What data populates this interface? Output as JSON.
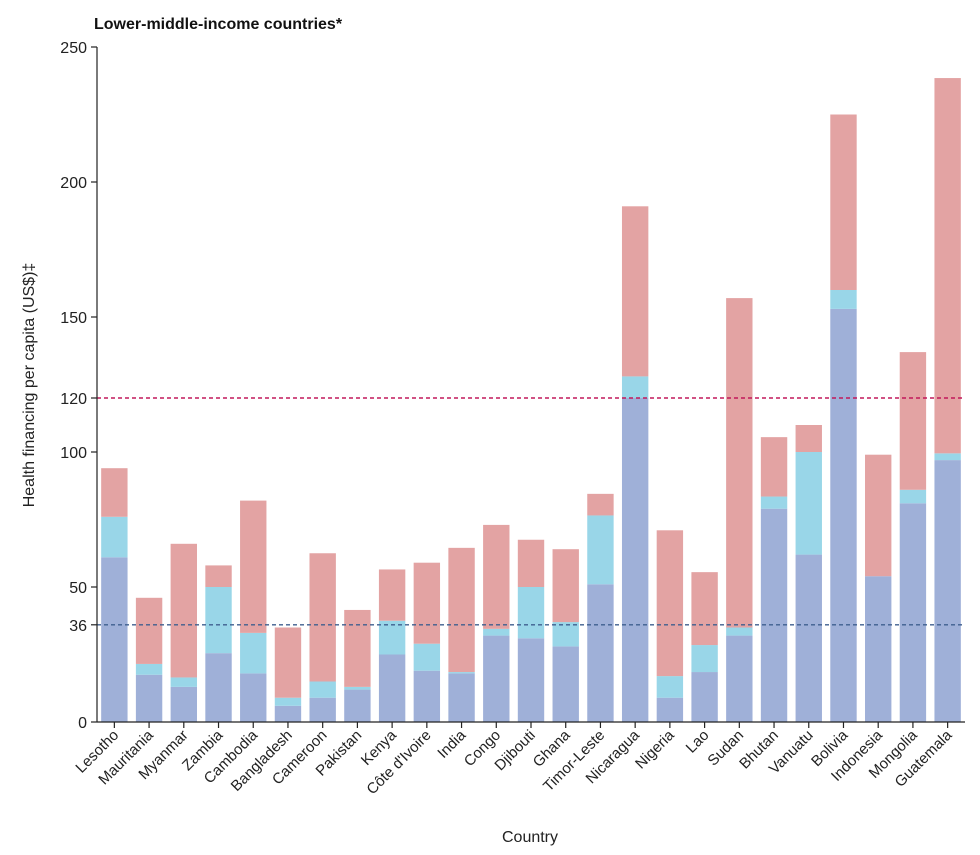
{
  "chart_data": {
    "type": "bar",
    "stacked": true,
    "title": "Lower-middle-income countries*",
    "xlabel": "Country",
    "ylabel": "Health financing per capita (US$)‡",
    "ylim": [
      0,
      250
    ],
    "yticks": [
      0,
      36,
      50,
      100,
      120,
      150,
      200,
      250
    ],
    "grid": false,
    "reference_lines": [
      {
        "value": 120,
        "color": "#c2185b",
        "style": "dashed"
      },
      {
        "value": 36,
        "color": "#3f5f8f",
        "style": "dashed"
      }
    ],
    "categories": [
      "Lesotho",
      "Mauritania",
      "Myanmar",
      "Zambia",
      "Cambodia",
      "Bangladesh",
      "Cameroon",
      "Pakistan",
      "Kenya",
      "Côte d'Ivoire",
      "India",
      "Congo",
      "Djibouti",
      "Ghana",
      "Timor-Leste",
      "Nicaragua",
      "Nigeria",
      "Lao",
      "Sudan",
      "Bhutan",
      "Vanuatu",
      "Bolivia",
      "Indonesia",
      "Mongolia",
      "Guatemala"
    ],
    "series": [
      {
        "color": "#9fb0d8",
        "values": [
          61,
          17.5,
          13,
          25.5,
          18,
          6,
          9,
          12,
          25,
          19,
          18,
          32,
          31,
          28,
          51,
          120,
          9,
          18.5,
          32,
          79,
          62,
          153,
          54,
          81,
          97
        ]
      },
      {
        "color": "#99d6e8",
        "values": [
          15,
          4,
          3.5,
          24.5,
          15,
          3,
          6,
          1,
          12.5,
          10,
          0.5,
          2.5,
          19,
          9,
          25.5,
          8,
          8,
          10,
          3,
          4.5,
          38,
          7,
          0,
          5,
          2.5
        ]
      },
      {
        "color": "#e3a3a3",
        "values": [
          18,
          24.5,
          49.5,
          8,
          49,
          26,
          47.5,
          28.5,
          19,
          30,
          46,
          38.5,
          17.5,
          27,
          8,
          63,
          54,
          27,
          122,
          22,
          10,
          65,
          45,
          51,
          139
        ]
      }
    ]
  }
}
